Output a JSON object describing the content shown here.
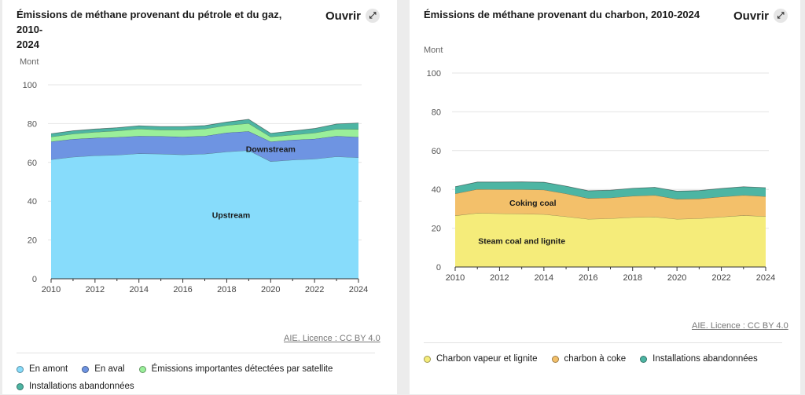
{
  "charts": [
    {
      "title_line1": "Émissions de méthane provenant du pétrole et du gaz, 2010-",
      "title_line2": "2024",
      "open_label": "Ouvrir",
      "open_icon": "expand-arrows-icon",
      "source": "AIE. Licence : CC BY 4.0",
      "legend": [
        {
          "label": "En amont",
          "color": "#87dcfb"
        },
        {
          "label": "En aval",
          "color": "#6e94e2"
        },
        {
          "label": "Émissions importantes détectées par satellite",
          "color": "#9aef9a"
        },
        {
          "label": "Installations abandonnées",
          "color": "#4db5a3"
        }
      ]
    },
    {
      "title_line1": "Émissions de méthane provenant du charbon, 2010-2024",
      "title_line2": "",
      "open_label": "Ouvrir",
      "open_icon": "expand-arrows-icon",
      "source": "AIE. Licence : CC BY 4.0",
      "legend": [
        {
          "label": "Charbon vapeur et lignite",
          "color": "#f5ec7a"
        },
        {
          "label": "charbon à coke",
          "color": "#f3c06a"
        },
        {
          "label": "Installations abandonnées",
          "color": "#4db5a3"
        }
      ]
    }
  ],
  "chart_data": [
    {
      "type": "area",
      "stacked": true,
      "ylabel": "Mont",
      "ylim": [
        0,
        100
      ],
      "yticks": [
        0,
        20,
        40,
        60,
        80,
        100
      ],
      "xticks": [
        2010,
        2012,
        2014,
        2016,
        2018,
        2020,
        2022,
        2024
      ],
      "x": [
        2010,
        2011,
        2012,
        2013,
        2014,
        2015,
        2016,
        2017,
        2018,
        2019,
        2020,
        2021,
        2022,
        2023,
        2024
      ],
      "grid": true,
      "series": [
        {
          "name": "En amont",
          "color": "#87dcfb",
          "values": [
            61.5,
            62.8,
            63.5,
            63.8,
            64.6,
            64.4,
            64.0,
            64.4,
            65.5,
            66.2,
            60.5,
            61.3,
            61.8,
            63.0,
            62.5
          ]
        },
        {
          "name": "En aval",
          "color": "#6e94e2",
          "values": [
            9.2,
            9.2,
            9.1,
            9.2,
            9.0,
            9.1,
            9.2,
            9.2,
            9.8,
            9.8,
            10.2,
            10.3,
            10.3,
            10.6,
            10.6
          ]
        },
        {
          "name": "Émissions importantes détectées par satellite",
          "color": "#9aef9a",
          "values": [
            2.5,
            2.7,
            3.0,
            3.3,
            3.7,
            3.3,
            3.6,
            3.7,
            3.8,
            4.1,
            2.5,
            2.6,
            3.1,
            3.6,
            4.0
          ]
        },
        {
          "name": "Installations abandonnées",
          "color": "#4db5a3",
          "values": [
            1.6,
            1.6,
            1.6,
            1.6,
            1.6,
            1.7,
            1.7,
            1.7,
            1.7,
            2.1,
            1.8,
            2.0,
            2.3,
            2.6,
            3.2
          ]
        }
      ],
      "annotations": [
        {
          "text": "Upstream",
          "x": 2018.2,
          "y": 33
        },
        {
          "text": "Downstream",
          "x": 2020,
          "y": 67
        }
      ]
    },
    {
      "type": "area",
      "stacked": true,
      "ylabel": "Mont",
      "ylim": [
        0,
        100
      ],
      "yticks": [
        0,
        20,
        40,
        60,
        80,
        100
      ],
      "xticks": [
        2010,
        2012,
        2014,
        2016,
        2018,
        2020,
        2022,
        2024
      ],
      "x": [
        2010,
        2011,
        2012,
        2013,
        2014,
        2015,
        2016,
        2017,
        2018,
        2019,
        2020,
        2021,
        2022,
        2023,
        2024
      ],
      "grid": true,
      "series": [
        {
          "name": "Charbon vapeur et lignite",
          "color": "#f5ec7a",
          "values": [
            26.5,
            27.8,
            27.6,
            27.4,
            27.2,
            26.0,
            24.7,
            25.0,
            25.6,
            25.8,
            24.7,
            25.0,
            25.8,
            26.6,
            26.1
          ]
        },
        {
          "name": "charbon à coke",
          "color": "#f3c06a",
          "values": [
            11.3,
            12.3,
            12.4,
            12.6,
            12.6,
            11.8,
            10.7,
            10.7,
            11.0,
            11.2,
            10.3,
            10.2,
            10.4,
            10.4,
            10.3
          ]
        },
        {
          "name": "Installations abandonnées",
          "color": "#4db5a3",
          "values": [
            3.6,
            3.7,
            3.8,
            3.9,
            3.9,
            3.9,
            3.9,
            3.9,
            4.0,
            4.1,
            4.1,
            4.2,
            4.3,
            4.4,
            4.5
          ]
        }
      ],
      "annotations": [
        {
          "text": "Coking coal",
          "x": 2013.5,
          "y": 33.2
        },
        {
          "text": "Steam coal and lignite",
          "x": 2013.0,
          "y": 13.6
        }
      ]
    }
  ]
}
